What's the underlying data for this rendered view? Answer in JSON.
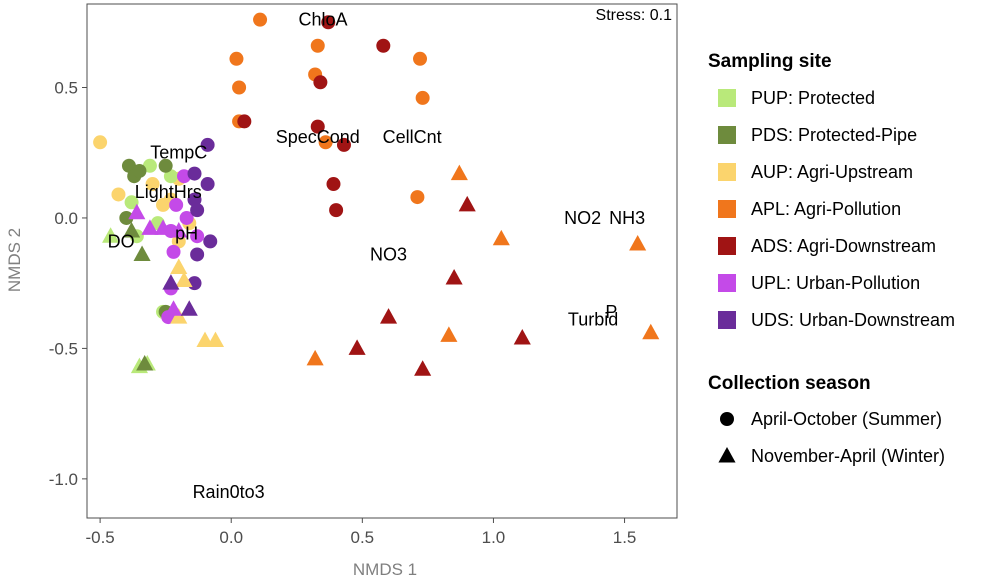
{
  "chart_data": {
    "type": "scatter",
    "title": "",
    "xlabel": "NMDS 1",
    "ylabel": "NMDS 2",
    "xlim": [
      -0.55,
      1.7
    ],
    "ylim": [
      -1.15,
      0.82
    ],
    "xticks": [
      -0.5,
      0.0,
      0.5,
      1.0,
      1.5
    ],
    "xtick_labels": [
      "-0.5",
      "0.0",
      "0.5",
      "1.0",
      "1.5"
    ],
    "yticks": [
      -1.0,
      -0.5,
      0.0,
      0.5
    ],
    "ytick_labels": [
      "-1.0",
      "-0.5",
      "0.0",
      "0.5"
    ],
    "grid": false,
    "stress_label": "Stress: 0.1",
    "legend_placement": "right",
    "legend_site_title": "Sampling site",
    "legend_season_title": "Collection season",
    "sites": [
      {
        "code": "PUP",
        "label": "PUP: Protected",
        "color": "#b9e97a"
      },
      {
        "code": "PDS",
        "label": "PDS: Protected-Pipe",
        "color": "#6e8b3d"
      },
      {
        "code": "AUP",
        "label": "AUP: Agri-Upstream",
        "color": "#fbd46d"
      },
      {
        "code": "APL",
        "label": "APL: Agri-Pollution",
        "color": "#f0761c"
      },
      {
        "code": "ADS",
        "label": "ADS: Agri-Downstream",
        "color": "#a01414"
      },
      {
        "code": "UPL",
        "label": "UPL: Urban-Pollution",
        "color": "#c44ae8"
      },
      {
        "code": "UDS",
        "label": "UDS: Urban-Downstream",
        "color": "#6a2c9a"
      }
    ],
    "seasons": [
      {
        "code": "summer",
        "label": "April-October (Summer)",
        "shape": "circle"
      },
      {
        "code": "winter",
        "label": "November-April (Winter)",
        "shape": "triangle"
      }
    ],
    "variables": [
      {
        "label": "ChloA",
        "x": 0.35,
        "y": 0.76
      },
      {
        "label": "SpecCond",
        "x": 0.33,
        "y": 0.31
      },
      {
        "label": "CellCnt",
        "x": 0.69,
        "y": 0.31
      },
      {
        "label": "TempC",
        "x": -0.2,
        "y": 0.25
      },
      {
        "label": "LightHrs",
        "x": -0.24,
        "y": 0.1
      },
      {
        "label": "pH",
        "x": -0.17,
        "y": -0.06
      },
      {
        "label": "DO",
        "x": -0.42,
        "y": -0.09
      },
      {
        "label": "NO3",
        "x": 0.6,
        "y": -0.14
      },
      {
        "label": "NO2",
        "x": 1.34,
        "y": 0.0
      },
      {
        "label": "NH3",
        "x": 1.51,
        "y": 0.0
      },
      {
        "label": "P",
        "x": 1.45,
        "y": -0.36
      },
      {
        "label": "Turbid",
        "x": 1.38,
        "y": -0.39
      },
      {
        "label": "Rain0to3",
        "x": -0.01,
        "y": -1.05
      }
    ],
    "points": [
      {
        "site": "APL",
        "season": "summer",
        "x": 0.11,
        "y": 0.76
      },
      {
        "site": "APL",
        "season": "summer",
        "x": 0.33,
        "y": 0.66
      },
      {
        "site": "APL",
        "season": "summer",
        "x": 0.02,
        "y": 0.61
      },
      {
        "site": "APL",
        "season": "summer",
        "x": 0.03,
        "y": 0.5
      },
      {
        "site": "APL",
        "season": "summer",
        "x": 0.32,
        "y": 0.55
      },
      {
        "site": "APL",
        "season": "summer",
        "x": 0.72,
        "y": 0.61
      },
      {
        "site": "APL",
        "season": "summer",
        "x": 0.73,
        "y": 0.46
      },
      {
        "site": "APL",
        "season": "summer",
        "x": 0.03,
        "y": 0.37
      },
      {
        "site": "APL",
        "season": "summer",
        "x": 0.36,
        "y": 0.29
      },
      {
        "site": "APL",
        "season": "summer",
        "x": 0.71,
        "y": 0.08
      },
      {
        "site": "ADS",
        "season": "summer",
        "x": 0.37,
        "y": 0.75
      },
      {
        "site": "ADS",
        "season": "summer",
        "x": 0.58,
        "y": 0.66
      },
      {
        "site": "ADS",
        "season": "summer",
        "x": 0.34,
        "y": 0.52
      },
      {
        "site": "ADS",
        "season": "summer",
        "x": 0.05,
        "y": 0.37
      },
      {
        "site": "ADS",
        "season": "summer",
        "x": 0.33,
        "y": 0.35
      },
      {
        "site": "ADS",
        "season": "summer",
        "x": 0.43,
        "y": 0.28
      },
      {
        "site": "ADS",
        "season": "summer",
        "x": 0.39,
        "y": 0.13
      },
      {
        "site": "ADS",
        "season": "summer",
        "x": 0.4,
        "y": 0.03
      },
      {
        "site": "AUP",
        "season": "summer",
        "x": -0.5,
        "y": 0.29
      },
      {
        "site": "AUP",
        "season": "summer",
        "x": -0.43,
        "y": 0.09
      },
      {
        "site": "AUP",
        "season": "summer",
        "x": -0.3,
        "y": 0.13
      },
      {
        "site": "AUP",
        "season": "summer",
        "x": -0.2,
        "y": 0.15
      },
      {
        "site": "AUP",
        "season": "summer",
        "x": -0.26,
        "y": 0.05
      },
      {
        "site": "AUP",
        "season": "summer",
        "x": -0.23,
        "y": 0.07
      },
      {
        "site": "AUP",
        "season": "summer",
        "x": -0.16,
        "y": -0.02
      },
      {
        "site": "AUP",
        "season": "summer",
        "x": -0.2,
        "y": -0.09
      },
      {
        "site": "PUP",
        "season": "summer",
        "x": -0.31,
        "y": 0.2
      },
      {
        "site": "PUP",
        "season": "summer",
        "x": -0.23,
        "y": 0.16
      },
      {
        "site": "PUP",
        "season": "summer",
        "x": -0.38,
        "y": 0.06
      },
      {
        "site": "PUP",
        "season": "summer",
        "x": -0.36,
        "y": -0.07
      },
      {
        "site": "PUP",
        "season": "summer",
        "x": -0.28,
        "y": -0.02
      },
      {
        "site": "PUP",
        "season": "summer",
        "x": -0.26,
        "y": -0.36
      },
      {
        "site": "PDS",
        "season": "summer",
        "x": -0.39,
        "y": 0.2
      },
      {
        "site": "PDS",
        "season": "summer",
        "x": -0.37,
        "y": 0.16
      },
      {
        "site": "PDS",
        "season": "summer",
        "x": -0.35,
        "y": 0.18
      },
      {
        "site": "PDS",
        "season": "summer",
        "x": -0.25,
        "y": 0.2
      },
      {
        "site": "PDS",
        "season": "summer",
        "x": -0.4,
        "y": 0.0
      },
      {
        "site": "PDS",
        "season": "summer",
        "x": -0.25,
        "y": -0.36
      },
      {
        "site": "UPL",
        "season": "summer",
        "x": -0.18,
        "y": 0.16
      },
      {
        "site": "UPL",
        "season": "summer",
        "x": -0.21,
        "y": 0.05
      },
      {
        "site": "UPL",
        "season": "summer",
        "x": -0.17,
        "y": 0.0
      },
      {
        "site": "UPL",
        "season": "summer",
        "x": -0.23,
        "y": -0.05
      },
      {
        "site": "UPL",
        "season": "summer",
        "x": -0.13,
        "y": -0.07
      },
      {
        "site": "UPL",
        "season": "summer",
        "x": -0.22,
        "y": -0.13
      },
      {
        "site": "UPL",
        "season": "summer",
        "x": -0.23,
        "y": -0.27
      },
      {
        "site": "UPL",
        "season": "summer",
        "x": -0.24,
        "y": -0.38
      },
      {
        "site": "UDS",
        "season": "summer",
        "x": -0.09,
        "y": 0.28
      },
      {
        "site": "UDS",
        "season": "summer",
        "x": -0.14,
        "y": 0.17
      },
      {
        "site": "UDS",
        "season": "summer",
        "x": -0.09,
        "y": 0.13
      },
      {
        "site": "UDS",
        "season": "summer",
        "x": -0.14,
        "y": 0.07
      },
      {
        "site": "UDS",
        "season": "summer",
        "x": -0.13,
        "y": 0.03
      },
      {
        "site": "UDS",
        "season": "summer",
        "x": -0.08,
        "y": -0.09
      },
      {
        "site": "UDS",
        "season": "summer",
        "x": -0.13,
        "y": -0.14
      },
      {
        "site": "UDS",
        "season": "summer",
        "x": -0.14,
        "y": -0.25
      },
      {
        "site": "APL",
        "season": "winter",
        "x": 0.87,
        "y": 0.17
      },
      {
        "site": "APL",
        "season": "winter",
        "x": 1.03,
        "y": -0.08
      },
      {
        "site": "APL",
        "season": "winter",
        "x": 1.55,
        "y": -0.1
      },
      {
        "site": "APL",
        "season": "winter",
        "x": 0.83,
        "y": -0.45
      },
      {
        "site": "APL",
        "season": "winter",
        "x": 1.6,
        "y": -0.44
      },
      {
        "site": "APL",
        "season": "winter",
        "x": 0.32,
        "y": -0.54
      },
      {
        "site": "ADS",
        "season": "winter",
        "x": 0.9,
        "y": 0.05
      },
      {
        "site": "ADS",
        "season": "winter",
        "x": 0.85,
        "y": -0.23
      },
      {
        "site": "ADS",
        "season": "winter",
        "x": 0.6,
        "y": -0.38
      },
      {
        "site": "ADS",
        "season": "winter",
        "x": 1.11,
        "y": -0.46
      },
      {
        "site": "ADS",
        "season": "winter",
        "x": 0.48,
        "y": -0.5
      },
      {
        "site": "ADS",
        "season": "winter",
        "x": 0.73,
        "y": -0.58
      },
      {
        "site": "PUP",
        "season": "winter",
        "x": -0.46,
        "y": -0.07
      },
      {
        "site": "PUP",
        "season": "winter",
        "x": -0.35,
        "y": -0.57
      },
      {
        "site": "PUP",
        "season": "winter",
        "x": -0.32,
        "y": -0.56
      },
      {
        "site": "PDS",
        "season": "winter",
        "x": -0.38,
        "y": -0.05
      },
      {
        "site": "PDS",
        "season": "winter",
        "x": -0.34,
        "y": -0.14
      },
      {
        "site": "PDS",
        "season": "winter",
        "x": -0.33,
        "y": -0.56
      },
      {
        "site": "AUP",
        "season": "winter",
        "x": -0.2,
        "y": -0.19
      },
      {
        "site": "AUP",
        "season": "winter",
        "x": -0.18,
        "y": -0.24
      },
      {
        "site": "AUP",
        "season": "winter",
        "x": -0.2,
        "y": -0.38
      },
      {
        "site": "AUP",
        "season": "winter",
        "x": -0.1,
        "y": -0.47
      },
      {
        "site": "AUP",
        "season": "winter",
        "x": -0.06,
        "y": -0.47
      },
      {
        "site": "UPL",
        "season": "winter",
        "x": -0.36,
        "y": 0.02
      },
      {
        "site": "UPL",
        "season": "winter",
        "x": -0.31,
        "y": -0.04
      },
      {
        "site": "UPL",
        "season": "winter",
        "x": -0.26,
        "y": -0.04
      },
      {
        "site": "UPL",
        "season": "winter",
        "x": -0.2,
        "y": -0.05
      },
      {
        "site": "UPL",
        "season": "winter",
        "x": -0.22,
        "y": -0.35
      },
      {
        "site": "UDS",
        "season": "winter",
        "x": -0.23,
        "y": -0.25
      },
      {
        "site": "UDS",
        "season": "winter",
        "x": -0.16,
        "y": -0.35
      }
    ]
  }
}
